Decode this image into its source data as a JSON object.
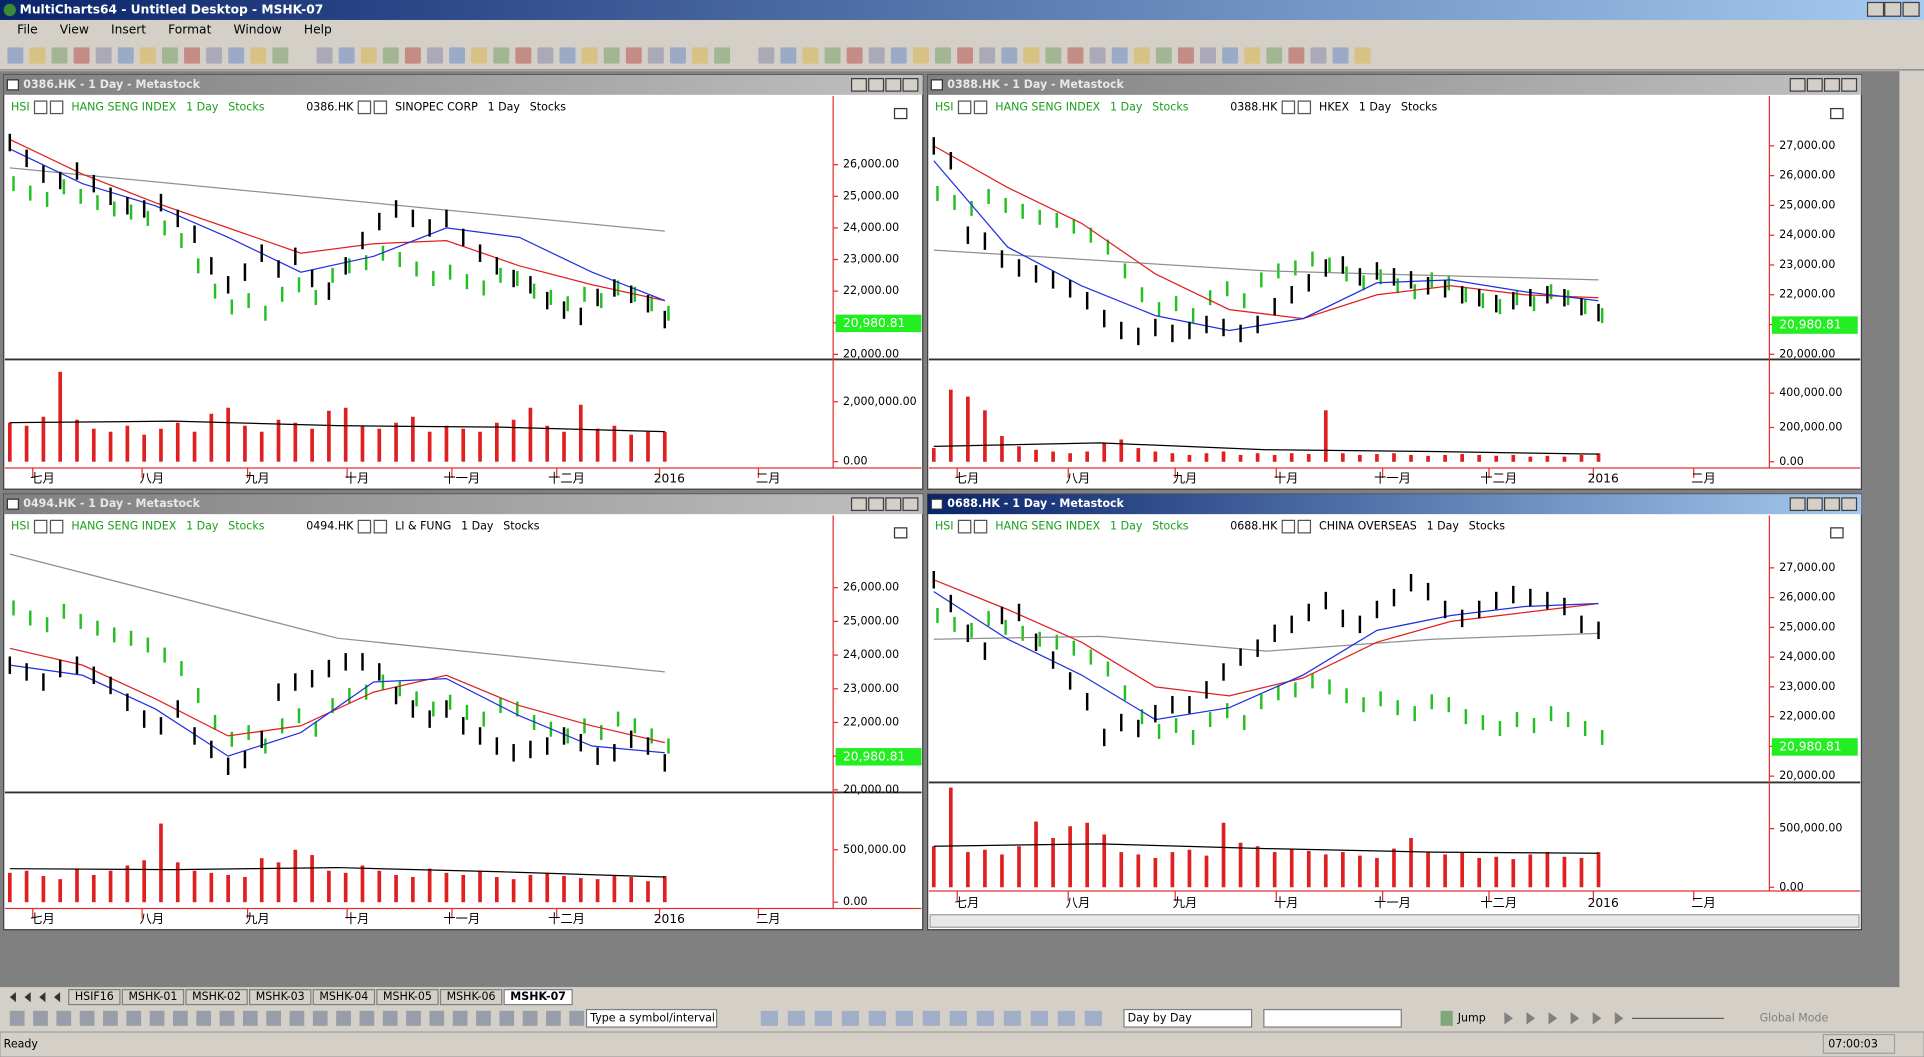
{
  "window": {
    "title": "MultiCharts64 - Untitled Desktop - MSHK-07"
  },
  "menu": [
    "File",
    "View",
    "Insert",
    "Format",
    "Window",
    "Help"
  ],
  "hsi_close": [
    25400,
    25100,
    24900,
    25300,
    25000,
    24800,
    24600,
    24500,
    24300,
    24000,
    23600,
    22800,
    22000,
    21500,
    21700,
    21300,
    21900,
    22200,
    21800,
    22500,
    22800,
    22900,
    23200,
    23000,
    22700,
    22400,
    22600,
    22300,
    22100,
    22500,
    22400,
    22000,
    21800,
    21600,
    21900,
    21700,
    22100,
    21900,
    21600,
    21300
  ],
  "panes": [
    {
      "title": "0386.HK - 1 Day - Metastock",
      "active": false,
      "legend": [
        {
          "symbol": "HSI",
          "name": "HANG SENG INDEX",
          "interval": "1 Day",
          "category": "Stocks"
        },
        {
          "symbol": "0386.HK",
          "name": "SINOPEC CORP",
          "interval": "1 Day",
          "category": "Stocks"
        }
      ],
      "price": {
        "ylim": [
          19880,
          28130
        ],
        "yticks": [
          {
            "value": 20000,
            "label": "20,000.00"
          },
          {
            "value": 21000,
            "label": "21,000.00"
          },
          {
            "value": 22000,
            "label": "22,000.00"
          },
          {
            "value": 23000,
            "label": "23,000.00"
          },
          {
            "value": 24000,
            "label": "24,000.00"
          },
          {
            "value": 25000,
            "label": "25,000.00"
          },
          {
            "value": 26000,
            "label": "26,000.00"
          }
        ],
        "close": [
          26700,
          26200,
          25700,
          25500,
          25800,
          25400,
          25000,
          24700,
          24600,
          24800,
          24300,
          23800,
          22800,
          22200,
          22600,
          23200,
          22700,
          23100,
          22400,
          22000,
          22800,
          23600,
          24200,
          24600,
          24300,
          24000,
          24300,
          23700,
          23200,
          22800,
          22400,
          22200,
          21700,
          21400,
          21200,
          21800,
          22100,
          21900,
          21600,
          21100
        ],
        "ma_fast": [
          26500,
          25400,
          24700,
          23700,
          22600,
          23100,
          24000,
          23700,
          22600,
          21700
        ],
        "ma_slow": [
          26800,
          25700,
          24800,
          24000,
          23200,
          23500,
          23600,
          22800,
          22200,
          21700
        ],
        "ma_long": [
          25900,
          23900
        ],
        "last": {
          "value": 20980.81,
          "label": "20,980.81"
        }
      },
      "volume": {
        "ylim": [
          -210000,
          3330000
        ],
        "yticks": [
          {
            "value": 0,
            "label": "0.00"
          },
          {
            "value": 2000000,
            "label": "2,000,000.00"
          }
        ],
        "values": [
          1300000,
          1200000,
          1500000,
          3000000,
          1400000,
          1100000,
          1000000,
          1200000,
          900000,
          1100000,
          1300000,
          1000000,
          1600000,
          1800000,
          1200000,
          1000000,
          1400000,
          1300000,
          1100000,
          1700000,
          1800000,
          1200000,
          1100000,
          1300000,
          1500000,
          1000000,
          1200000,
          1100000,
          1000000,
          1300000,
          1400000,
          1800000,
          1200000,
          1000000,
          1900000,
          1100000,
          1200000,
          900000,
          1000000,
          1000000
        ],
        "average": [
          1300000,
          1350000,
          1200000,
          1150000,
          1000000
        ]
      },
      "x_labels": [
        "七月",
        "八月",
        "九月",
        "十月",
        "十一月",
        "十二月",
        "2016",
        "二月"
      ]
    },
    {
      "title": "0388.HK - 1 Day - Metastock",
      "active": false,
      "legend": [
        {
          "symbol": "HSI",
          "name": "HANG SENG INDEX",
          "interval": "1 Day",
          "category": "Stocks"
        },
        {
          "symbol": "0388.HK",
          "name": "HKEX",
          "interval": "1 Day",
          "category": "Stocks"
        }
      ],
      "price": {
        "ylim": [
          19870,
          28630
        ],
        "yticks": [
          {
            "value": 20000,
            "label": "20,000.00"
          },
          {
            "value": 21000,
            "label": "21,000.00"
          },
          {
            "value": 22000,
            "label": "22,000.00"
          },
          {
            "value": 23000,
            "label": "23,000.00"
          },
          {
            "value": 24000,
            "label": "24,000.00"
          },
          {
            "value": 25000,
            "label": "25,000.00"
          },
          {
            "value": 26000,
            "label": "26,000.00"
          },
          {
            "value": 27000,
            "label": "27,000.00"
          }
        ],
        "close": [
          27000,
          26500,
          24000,
          23800,
          23200,
          22900,
          22700,
          22500,
          22200,
          21800,
          21200,
          20800,
          20600,
          20900,
          20700,
          20800,
          21000,
          20900,
          20700,
          21000,
          21600,
          22000,
          22400,
          22900,
          23000,
          22600,
          22800,
          22600,
          22500,
          22300,
          22200,
          22000,
          21900,
          21700,
          21800,
          21900,
          22000,
          21900,
          21600,
          21400
        ],
        "ma_fast": [
          26500,
          23600,
          22300,
          21300,
          20800,
          21200,
          22400,
          22500,
          22100,
          21800
        ],
        "ma_slow": [
          27000,
          25600,
          24400,
          22700,
          21500,
          21200,
          22000,
          22300,
          22000,
          21900
        ],
        "ma_long": [
          23500,
          22800,
          22500
        ],
        "last": {
          "value": 20980.81,
          "label": "20,980.81"
        }
      },
      "volume": {
        "ylim": [
          -36000,
          582000
        ],
        "yticks": [
          {
            "value": 0,
            "label": "0.00"
          },
          {
            "value": 200000,
            "label": "200,000.00"
          },
          {
            "value": 400000,
            "label": "400,000.00"
          }
        ],
        "values": [
          80000,
          420000,
          380000,
          300000,
          150000,
          90000,
          70000,
          60000,
          50000,
          60000,
          110000,
          130000,
          80000,
          60000,
          50000,
          40000,
          50000,
          60000,
          40000,
          50000,
          40000,
          50000,
          45000,
          300000,
          50000,
          40000,
          45000,
          50000,
          40000,
          35000,
          40000,
          45000,
          40000,
          35000,
          40000,
          30000,
          35000,
          30000,
          40000,
          50000
        ],
        "average": [
          90000,
          110000,
          70000,
          60000,
          45000
        ]
      },
      "x_labels": [
        "七月",
        "八月",
        "九月",
        "十月",
        "十一月",
        "十二月",
        "2016",
        "二月"
      ]
    },
    {
      "title": "0494.HK - 1 Day - Metastock",
      "active": false,
      "legend": [
        {
          "symbol": "HSI",
          "name": "HANG SENG INDEX",
          "interval": "1 Day",
          "category": "Stocks"
        },
        {
          "symbol": "0494.HK",
          "name": "LI & FUNG",
          "interval": "1 Day",
          "category": "Stocks"
        }
      ],
      "price": {
        "ylim": [
          19960,
          28110
        ],
        "yticks": [
          {
            "value": 20000,
            "label": "20,000.00"
          },
          {
            "value": 21000,
            "label": "21,000.00"
          },
          {
            "value": 22000,
            "label": "22,000.00"
          },
          {
            "value": 23000,
            "label": "23,000.00"
          },
          {
            "value": 24000,
            "label": "24,000.00"
          },
          {
            "value": 25000,
            "label": "25,000.00"
          },
          {
            "value": 26000,
            "label": "26,000.00"
          }
        ],
        "close": [
          23700,
          23500,
          23200,
          23600,
          23700,
          23400,
          23100,
          22600,
          22100,
          21900,
          22400,
          21600,
          21200,
          20700,
          20900,
          21500,
          22900,
          23200,
          23300,
          23600,
          23800,
          23800,
          23500,
          22800,
          22400,
          22100,
          22400,
          21900,
          21600,
          21300,
          21100,
          21200,
          21300,
          21600,
          21400,
          21000,
          21100,
          21500,
          21300,
          20800
        ],
        "ma_fast": [
          23700,
          23400,
          22400,
          21000,
          21700,
          23200,
          23300,
          22200,
          21300,
          21100
        ],
        "ma_slow": [
          24200,
          23700,
          22700,
          21600,
          21900,
          22900,
          23400,
          22500,
          21900,
          21400
        ],
        "ma_long": [
          27000,
          24500,
          23500
        ],
        "last": {
          "value": 20980.81,
          "label": "20,980.81"
        }
      },
      "volume": {
        "ylim": [
          -60000,
          1011000
        ],
        "yticks": [
          {
            "value": 0,
            "label": "0.00"
          },
          {
            "value": 500000,
            "label": "500,000.00"
          }
        ],
        "values": [
          280000,
          300000,
          250000,
          220000,
          320000,
          260000,
          300000,
          350000,
          400000,
          750000,
          380000,
          300000,
          280000,
          260000,
          240000,
          420000,
          380000,
          500000,
          450000,
          300000,
          280000,
          350000,
          300000,
          260000,
          240000,
          320000,
          280000,
          260000,
          300000,
          240000,
          220000,
          260000,
          280000,
          250000,
          230000,
          220000,
          260000,
          240000,
          200000,
          250000
        ],
        "average": [
          320000,
          310000,
          330000,
          290000,
          240000
        ]
      },
      "x_labels": [
        "七月",
        "八月",
        "九月",
        "十月",
        "十一月",
        "十二月",
        "2016",
        "二月"
      ]
    },
    {
      "title": "0688.HK - 1 Day - Metastock",
      "active": true,
      "legend": [
        {
          "symbol": "HSI",
          "name": "HANG SENG INDEX",
          "interval": "1 Day",
          "category": "Stocks"
        },
        {
          "symbol": "0688.HK",
          "name": "CHINA OVERSEAS",
          "interval": "1 Day",
          "category": "Stocks"
        }
      ],
      "price": {
        "ylim": [
          19830,
          28720
        ],
        "yticks": [
          {
            "value": 20000,
            "label": "20,000.00"
          },
          {
            "value": 21000,
            "label": "21,000.00"
          },
          {
            "value": 22000,
            "label": "22,000.00"
          },
          {
            "value": 23000,
            "label": "23,000.00"
          },
          {
            "value": 24000,
            "label": "24,000.00"
          },
          {
            "value": 25000,
            "label": "25,000.00"
          },
          {
            "value": 26000,
            "label": "26,000.00"
          },
          {
            "value": 27000,
            "label": "27,000.00"
          }
        ],
        "close": [
          26600,
          25800,
          24800,
          24200,
          25400,
          25500,
          24500,
          23900,
          23200,
          22500,
          21300,
          21800,
          21600,
          22100,
          22400,
          22400,
          22900,
          23500,
          24000,
          24300,
          24800,
          25100,
          25500,
          25900,
          25300,
          25100,
          25600,
          26000,
          26500,
          26200,
          25600,
          25300,
          25600,
          25900,
          26100,
          26000,
          25900,
          25700,
          25100,
          24900
        ],
        "ma_fast": [
          26200,
          24600,
          23400,
          21900,
          22300,
          23400,
          24900,
          25400,
          25700,
          25800
        ],
        "ma_slow": [
          26600,
          25600,
          24500,
          23000,
          22700,
          23300,
          24500,
          25200,
          25500,
          25800
        ],
        "ma_long": [
          24600,
          24700,
          24200,
          24600,
          24800
        ],
        "last": {
          "value": 20980.81,
          "label": "20,980.81"
        }
      },
      "volume": {
        "ylim": [
          -32000,
          883000
        ],
        "yticks": [
          {
            "value": 0,
            "label": "0.00"
          },
          {
            "value": 500000,
            "label": "500,000.00"
          }
        ],
        "values": [
          350000,
          850000,
          300000,
          320000,
          280000,
          350000,
          560000,
          420000,
          520000,
          550000,
          450000,
          300000,
          280000,
          250000,
          300000,
          320000,
          270000,
          550000,
          380000,
          350000,
          300000,
          330000,
          310000,
          280000,
          300000,
          270000,
          250000,
          330000,
          420000,
          300000,
          280000,
          300000,
          250000,
          260000,
          240000,
          280000,
          300000,
          260000,
          250000,
          300000
        ],
        "average": [
          350000,
          370000,
          330000,
          300000,
          290000
        ]
      },
      "x_labels": [
        "七月",
        "八月",
        "九月",
        "十月",
        "十一月",
        "十二月",
        "2016",
        "二月"
      ]
    }
  ],
  "tabs": [
    "HSIF16",
    "MSHK-01",
    "MSHK-02",
    "MSHK-03",
    "MSHK-04",
    "MSHK-05",
    "MSHK-06",
    "MSHK-07"
  ],
  "active_tab": 7,
  "toolbar": {
    "symbol_input": "Type a symbol/interval",
    "mode": "Day by Day",
    "jump": "Jump",
    "global_mode": "Global Mode"
  },
  "status": {
    "text": "Ready",
    "time": "07:00:03"
  }
}
